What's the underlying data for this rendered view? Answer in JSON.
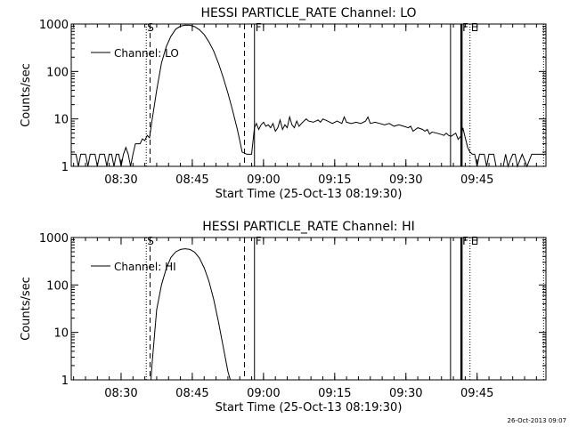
{
  "chart_data": [
    {
      "type": "line",
      "title": "HESSI PARTICLE_RATE Channel: LO",
      "xlabel": "Start Time (25-Oct-13 08:19:30)",
      "ylabel": "Counts/sec",
      "x_unit": "minutes",
      "xlim": [
        0,
        100
      ],
      "ylim": [
        1,
        1000
      ],
      "y_scale": "log",
      "x_tick_labels": [
        "08:30",
        "08:45",
        "09:00",
        "09:15",
        "09:30",
        "09:45"
      ],
      "x_ticks": [
        10.5,
        25.5,
        40.5,
        55.5,
        70.5,
        85.5
      ],
      "y_tick_labels": [
        "1",
        "10",
        "100",
        "1000"
      ],
      "y_ticks": [
        1,
        10,
        100,
        1000
      ],
      "legend": {
        "placement": "top-left",
        "entries": [
          "Channel: LO"
        ]
      },
      "markers": [
        {
          "label": "S",
          "x": 15.8,
          "style": "dotted"
        },
        {
          "label": "",
          "x": 16.6,
          "style": "dashed"
        },
        {
          "label": "",
          "x": 36.5,
          "style": "dashed"
        },
        {
          "label": "F",
          "x": 38.6,
          "style": "solid"
        },
        {
          "label": "",
          "x": 79.9,
          "style": "solid"
        },
        {
          "label": "F",
          "x": 82.2,
          "style": "solid-thick"
        },
        {
          "label": "E",
          "x": 84.0,
          "style": "dotted"
        },
        {
          "label": "",
          "x": 99.5,
          "style": "dotted"
        }
      ],
      "series": [
        {
          "name": "Channel: LO",
          "segments": [
            [
              [
                0,
                1.8
              ],
              [
                1,
                1.8
              ],
              [
                1.5,
                1
              ],
              [
                2,
                1.8
              ],
              [
                3,
                1.8
              ],
              [
                3.5,
                1
              ],
              [
                4,
                1.8
              ],
              [
                5,
                1.8
              ],
              [
                5.5,
                1
              ],
              [
                6,
                1.8
              ],
              [
                7,
                1.8
              ],
              [
                7.5,
                1
              ],
              [
                8,
                1.8
              ],
              [
                8.5,
                1.8
              ],
              [
                9,
                1
              ],
              [
                9.5,
                1.8
              ],
              [
                10,
                1.8
              ],
              [
                10.5,
                1
              ],
              [
                11,
                1.8
              ],
              [
                11.5,
                2.5
              ],
              [
                12,
                1.8
              ],
              [
                12.5,
                1
              ],
              [
                13,
                1.8
              ],
              [
                13.5,
                3
              ],
              [
                14.5,
                3
              ],
              [
                15,
                3.8
              ],
              [
                15.5,
                3.5
              ],
              [
                16,
                4.5
              ],
              [
                16.5,
                4
              ],
              [
                17,
                9
              ],
              [
                18,
                40
              ],
              [
                19,
                150
              ],
              [
                20,
                330
              ],
              [
                21,
                550
              ],
              [
                22,
                780
              ],
              [
                23,
                900
              ],
              [
                24,
                950
              ],
              [
                25,
                940
              ],
              [
                26,
                880
              ],
              [
                27,
                760
              ],
              [
                28,
                600
              ],
              [
                29,
                420
              ],
              [
                30,
                270
              ],
              [
                31,
                150
              ],
              [
                32,
                75
              ],
              [
                33,
                35
              ],
              [
                34,
                15
              ],
              [
                35,
                6
              ],
              [
                35.5,
                3.5
              ],
              [
                36,
                2
              ],
              [
                37,
                1.8
              ],
              [
                38,
                1.8
              ],
              [
                38.6,
                6.5
              ]
            ],
            [
              [
                38.6,
                6.5
              ],
              [
                39,
                8
              ],
              [
                39.5,
                6
              ],
              [
                40,
                7.5
              ],
              [
                40.5,
                8.5
              ],
              [
                41,
                7
              ],
              [
                41.5,
                7.5
              ],
              [
                42,
                6.5
              ],
              [
                42.5,
                8
              ],
              [
                43,
                5.5
              ],
              [
                43.5,
                6.5
              ],
              [
                44,
                9.5
              ],
              [
                44.5,
                6
              ],
              [
                45,
                7.5
              ],
              [
                45.5,
                6.5
              ],
              [
                46,
                11
              ],
              [
                46.5,
                7.5
              ],
              [
                47,
                6.5
              ],
              [
                47.5,
                9
              ],
              [
                48,
                7
              ],
              [
                48.5,
                8
              ],
              [
                49,
                9
              ],
              [
                49.5,
                10
              ],
              [
                50,
                9
              ],
              [
                51,
                8.5
              ],
              [
                52,
                9.5
              ],
              [
                52.5,
                8.5
              ],
              [
                53,
                10
              ],
              [
                54,
                9
              ],
              [
                55,
                8
              ],
              [
                56,
                9
              ],
              [
                57,
                8
              ],
              [
                57.5,
                11
              ],
              [
                58,
                8.5
              ],
              [
                59,
                8
              ],
              [
                60,
                8.5
              ],
              [
                61,
                8
              ],
              [
                62,
                9
              ],
              [
                62.5,
                11
              ],
              [
                63,
                8
              ],
              [
                64,
                8.5
              ],
              [
                65,
                8
              ],
              [
                66,
                7.5
              ],
              [
                67,
                8
              ],
              [
                68,
                7
              ],
              [
                69,
                7.5
              ],
              [
                70,
                7
              ],
              [
                71,
                6.5
              ],
              [
                71.5,
                7
              ],
              [
                72,
                5.5
              ],
              [
                73,
                6.5
              ],
              [
                74,
                6
              ],
              [
                74.5,
                5.5
              ],
              [
                75,
                6
              ],
              [
                75.5,
                4.8
              ],
              [
                76,
                5.3
              ],
              [
                77,
                5
              ],
              [
                78,
                4.7
              ],
              [
                78.5,
                4.5
              ],
              [
                79,
                5
              ],
              [
                79.5,
                4.5
              ],
              [
                80,
                4.3
              ],
              [
                81,
                5
              ],
              [
                81.5,
                3.7
              ],
              [
                82.2,
                4.5
              ]
            ],
            [
              [
                82.2,
                4.5
              ],
              [
                82.5,
                6.5
              ],
              [
                83,
                4
              ],
              [
                83.5,
                2.5
              ],
              [
                84,
                2
              ],
              [
                84.5,
                1.8
              ],
              [
                85,
                1.8
              ],
              [
                85.5,
                1
              ],
              [
                86,
                1.8
              ],
              [
                87,
                1.8
              ],
              [
                87.5,
                1
              ],
              [
                88,
                1.8
              ],
              [
                89,
                1.8
              ],
              [
                89.5,
                1
              ],
              [
                90,
                1
              ],
              [
                91,
                1
              ],
              [
                91.5,
                1.8
              ],
              [
                92,
                1
              ],
              [
                93,
                1.8
              ],
              [
                93.5,
                1.8
              ],
              [
                94,
                1
              ],
              [
                95,
                1.8
              ],
              [
                96,
                1
              ],
              [
                97,
                1.8
              ],
              [
                98,
                1.8
              ],
              [
                99,
                1.8
              ],
              [
                100,
                1.8
              ]
            ]
          ]
        }
      ]
    },
    {
      "type": "line",
      "title": "HESSI PARTICLE_RATE Channel: HI",
      "xlabel": "Start Time (25-Oct-13 08:19:30)",
      "ylabel": "Counts/sec",
      "x_unit": "minutes",
      "xlim": [
        0,
        100
      ],
      "ylim": [
        1,
        1000
      ],
      "y_scale": "log",
      "x_tick_labels": [
        "08:30",
        "08:45",
        "09:00",
        "09:15",
        "09:30",
        "09:45"
      ],
      "x_ticks": [
        10.5,
        25.5,
        40.5,
        55.5,
        70.5,
        85.5
      ],
      "y_tick_labels": [
        "1",
        "10",
        "100",
        "1000"
      ],
      "y_ticks": [
        1,
        10,
        100,
        1000
      ],
      "legend": {
        "placement": "top-left",
        "entries": [
          "Channel: HI"
        ]
      },
      "markers": [
        {
          "label": "S",
          "x": 15.8,
          "style": "dotted"
        },
        {
          "label": "",
          "x": 16.6,
          "style": "dashed"
        },
        {
          "label": "",
          "x": 36.5,
          "style": "dashed"
        },
        {
          "label": "F",
          "x": 38.6,
          "style": "solid"
        },
        {
          "label": "",
          "x": 79.9,
          "style": "solid"
        },
        {
          "label": "F",
          "x": 82.2,
          "style": "solid-thick"
        },
        {
          "label": "E",
          "x": 84.0,
          "style": "dotted"
        },
        {
          "label": "",
          "x": 99.5,
          "style": "dotted"
        }
      ],
      "series": [
        {
          "name": "Channel: HI",
          "segments": [
            [
              [
                16.8,
                1
              ],
              [
                17,
                2
              ],
              [
                17.5,
                8
              ],
              [
                18,
                30
              ],
              [
                19,
                100
              ],
              [
                20,
                220
              ],
              [
                21,
                380
              ],
              [
                22,
                500
              ],
              [
                23,
                560
              ],
              [
                24,
                580
              ],
              [
                25,
                560
              ],
              [
                26,
                490
              ],
              [
                27,
                370
              ],
              [
                28,
                230
              ],
              [
                29,
                120
              ],
              [
                30,
                50
              ],
              [
                31,
                17
              ],
              [
                32,
                5
              ],
              [
                33,
                1.5
              ],
              [
                33.5,
                1
              ]
            ]
          ]
        }
      ]
    }
  ],
  "footer": {
    "timestamp": "26-Oct-2013 09:07"
  }
}
